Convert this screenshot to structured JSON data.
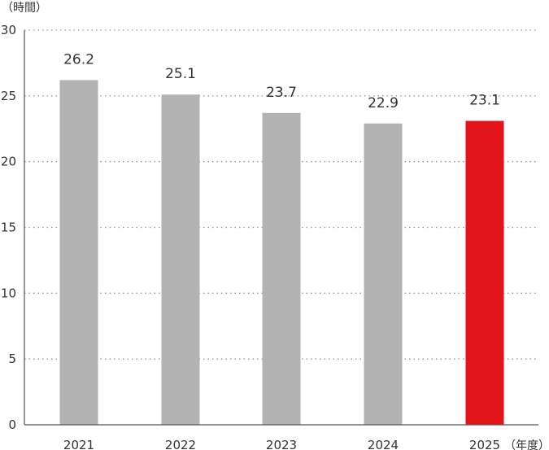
{
  "chart_data": {
    "type": "bar",
    "categories": [
      "2021",
      "2022",
      "2023",
      "2024",
      "2025"
    ],
    "values": [
      26.2,
      25.1,
      23.7,
      22.9,
      23.1
    ],
    "data_labels": [
      "26.2",
      "25.1",
      "23.7",
      "22.9",
      "23.1"
    ],
    "ylabel": "（時間）",
    "xlabel": "（年度）",
    "ylim": [
      0,
      30
    ],
    "yticks": [
      0,
      5,
      10,
      15,
      20,
      25,
      30
    ],
    "grid": "horizontal dotted",
    "legend": "none",
    "colors": {
      "default_bar": "#b3b3b3",
      "highlight_bar": "#e3141a",
      "highlight_category": "2025"
    }
  }
}
